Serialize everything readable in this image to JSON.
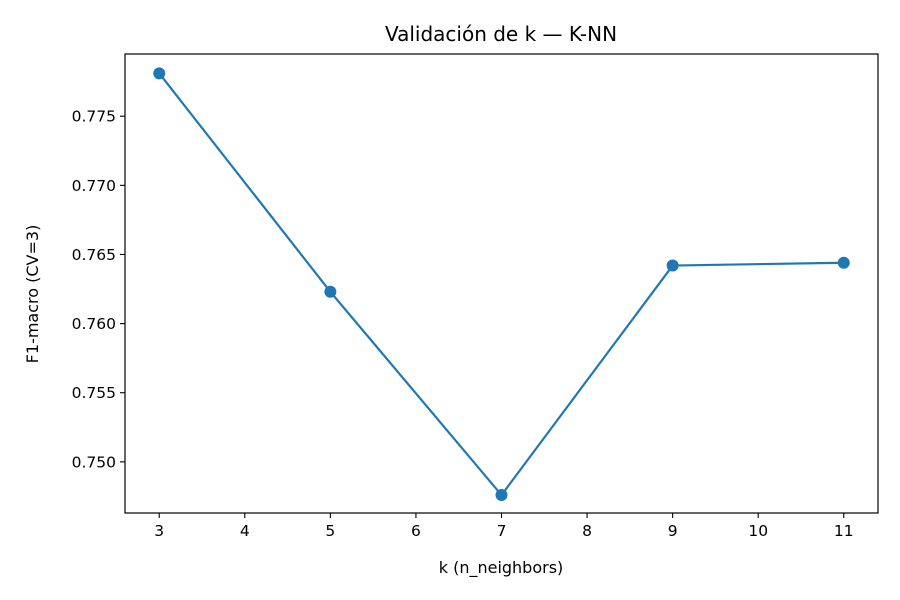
{
  "chart_data": {
    "type": "line",
    "title": "Validación de k — K-NN",
    "xlabel": "k (n_neighbors)",
    "ylabel": "F1-macro (CV=3)",
    "x": [
      3,
      5,
      7,
      9,
      11
    ],
    "series": [
      {
        "values": [
          0.7781,
          0.7623,
          0.7476,
          0.7642,
          0.7644
        ]
      }
    ],
    "xlim": [
      2.6,
      11.4
    ],
    "ylim": [
      0.7463,
      0.7795
    ],
    "xticks": [
      3,
      4,
      5,
      6,
      7,
      8,
      9,
      10,
      11
    ],
    "xtick_labels": [
      "3",
      "4",
      "5",
      "6",
      "7",
      "8",
      "9",
      "10",
      "11"
    ],
    "yticks": [
      0.75,
      0.755,
      0.76,
      0.765,
      0.77,
      0.775
    ],
    "ytick_labels": [
      "0.750",
      "0.755",
      "0.760",
      "0.765",
      "0.770",
      "0.775"
    ],
    "grid": false,
    "markers": "circle",
    "color": "#1f77b4"
  }
}
